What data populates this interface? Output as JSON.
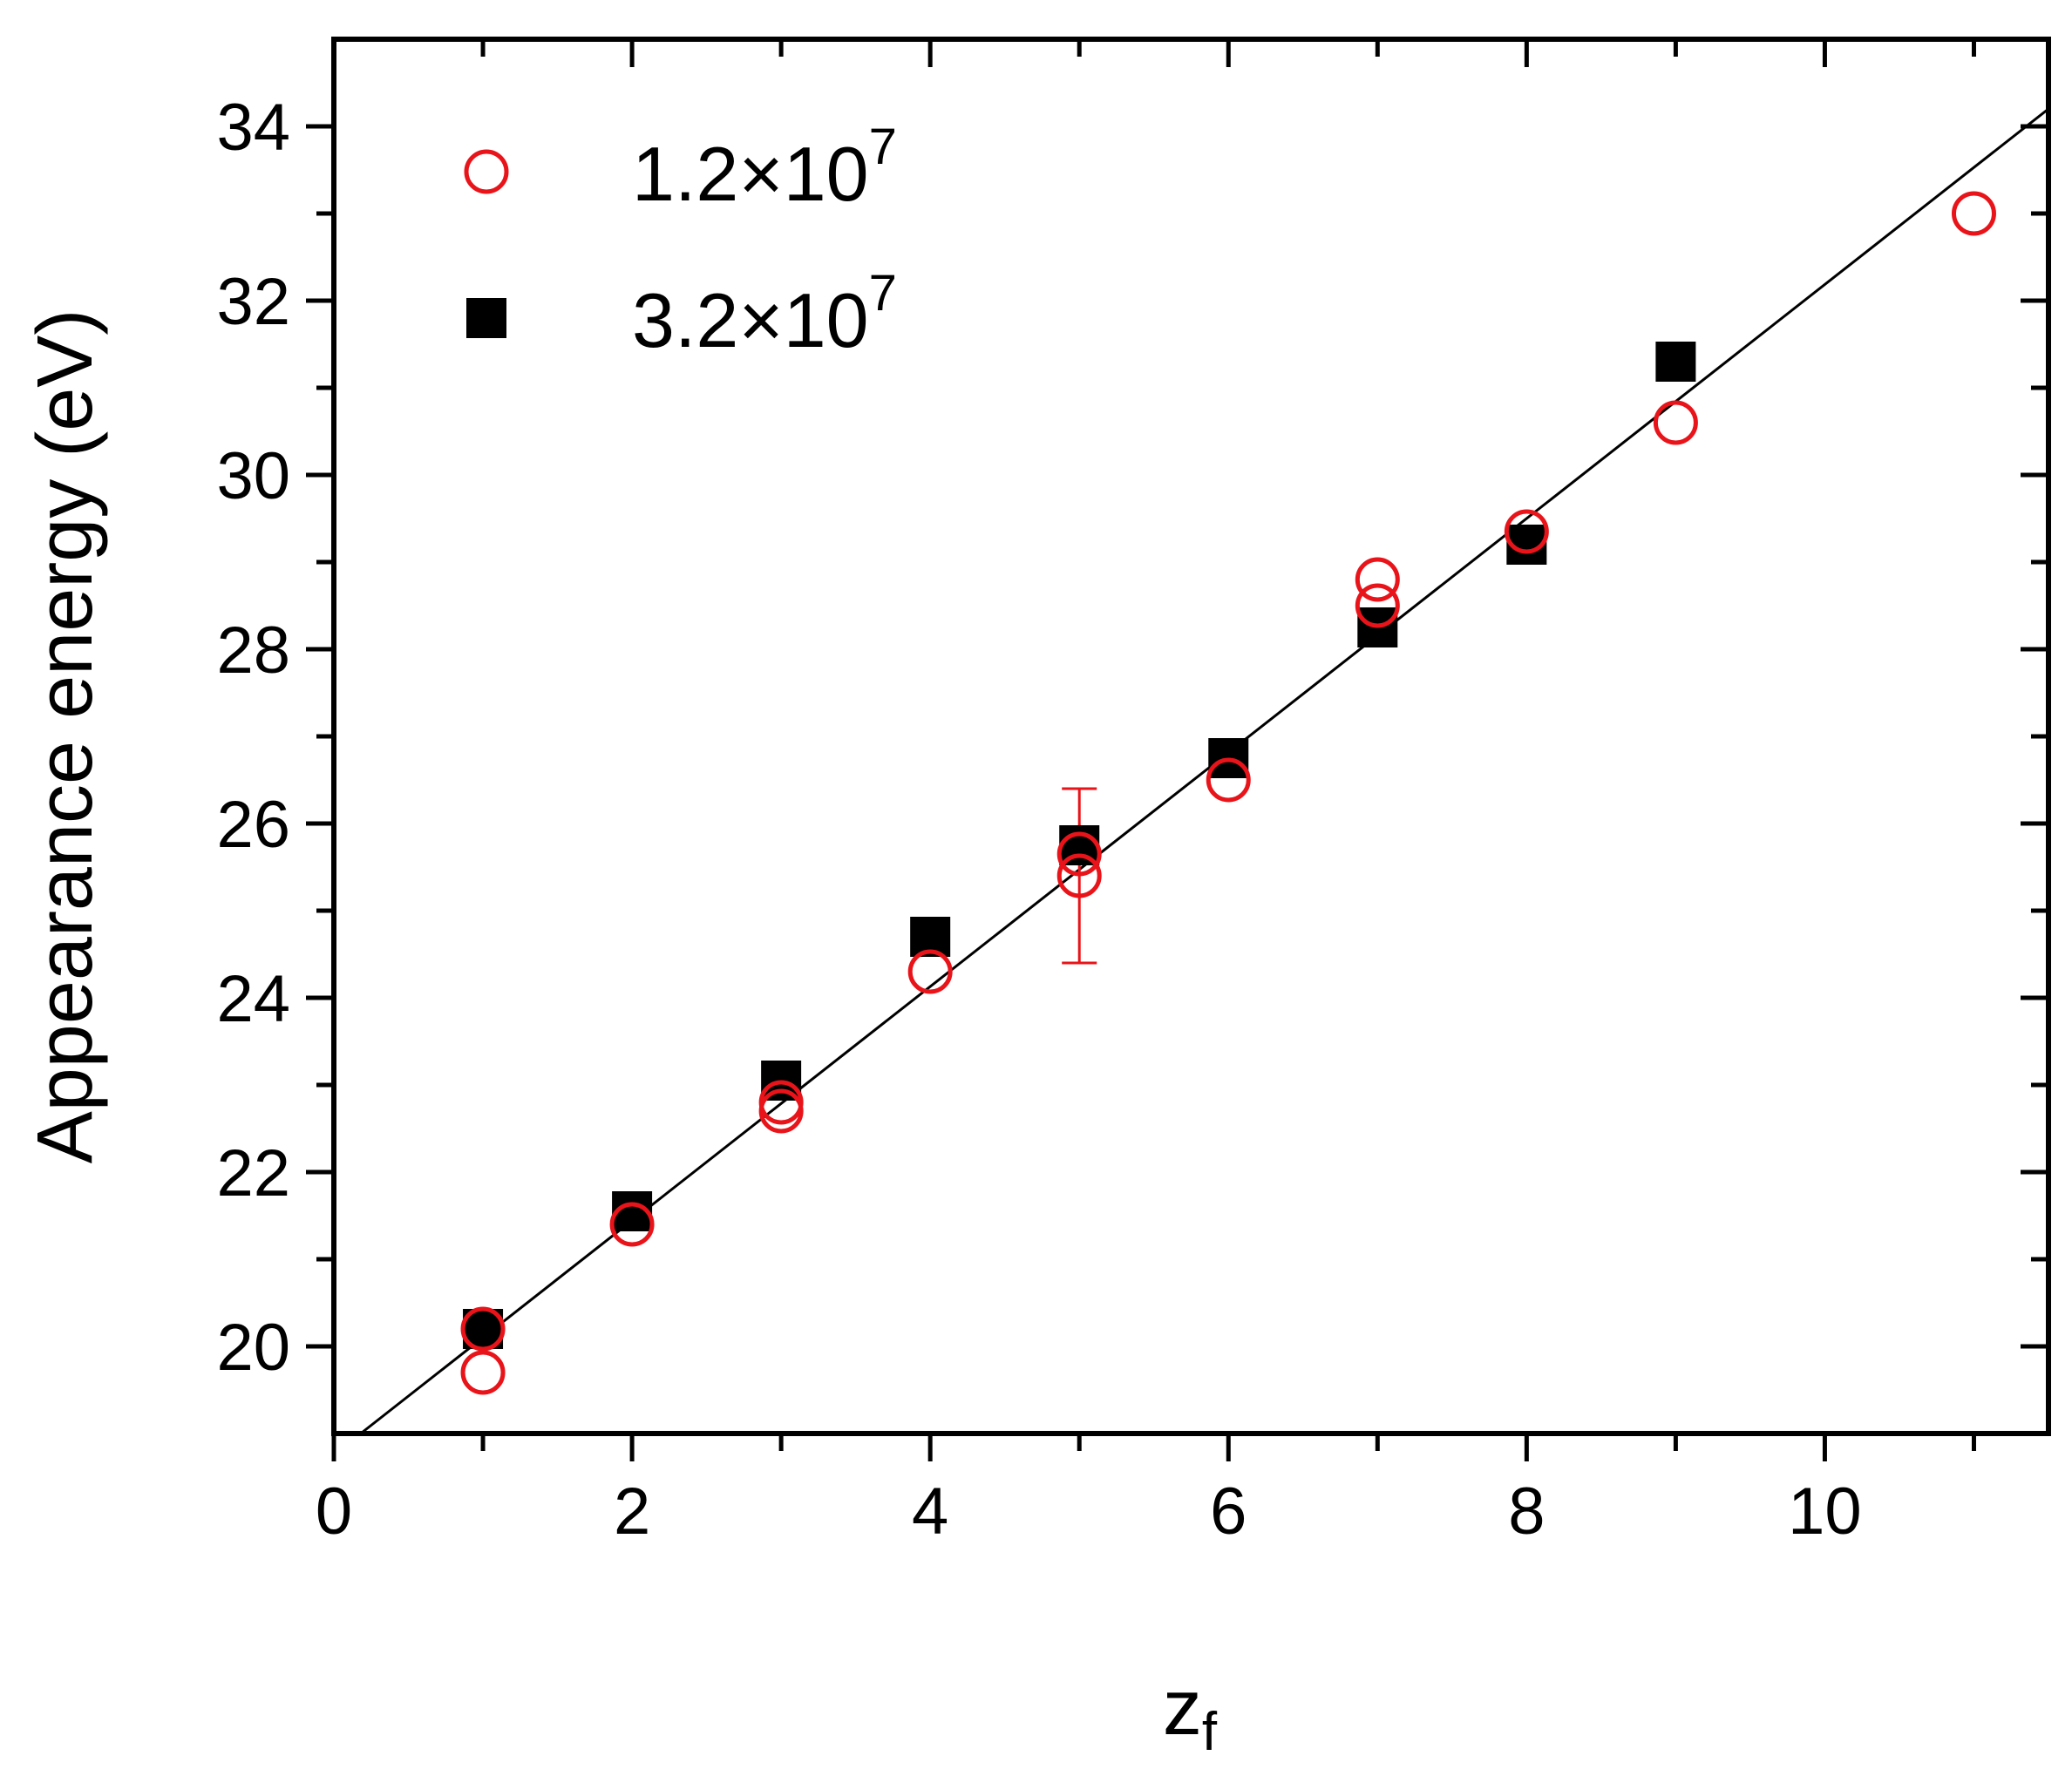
{
  "chart_data": {
    "type": "scatter",
    "xlabel": "z",
    "xlabel_sub": "f",
    "ylabel": "Appearance energy (eV)",
    "xlim": [
      0,
      11.5
    ],
    "ylim": [
      19,
      35
    ],
    "xticks": [
      0,
      2,
      4,
      6,
      8,
      10
    ],
    "yticks": [
      20,
      22,
      24,
      26,
      28,
      30,
      32,
      34
    ],
    "x_minor_step": 1,
    "y_minor_step": 1,
    "legend_position": "top-left",
    "series": [
      {
        "name": "1.2×10",
        "name_sup": "7",
        "marker": "open-circle",
        "color": "#e8141a",
        "points": [
          [
            1,
            20.2
          ],
          [
            1,
            19.7
          ],
          [
            2,
            21.4
          ],
          [
            3,
            22.7
          ],
          [
            3,
            22.8
          ],
          [
            4,
            24.3
          ],
          [
            5,
            25.4
          ],
          [
            5,
            25.65
          ],
          [
            6,
            26.5
          ],
          [
            7,
            28.5
          ],
          [
            7,
            28.8
          ],
          [
            8,
            29.35
          ],
          [
            9,
            30.6
          ],
          [
            11,
            33.0
          ]
        ]
      },
      {
        "name": "3.2×10",
        "name_sup": "7",
        "marker": "filled-square",
        "color": "#000000",
        "points": [
          [
            1,
            20.2
          ],
          [
            2,
            21.55
          ],
          [
            3,
            23.05
          ],
          [
            4,
            24.7
          ],
          [
            5,
            25.75
          ],
          [
            6,
            26.75
          ],
          [
            7,
            28.25
          ],
          [
            8,
            29.2
          ],
          [
            9,
            31.3
          ]
        ]
      }
    ],
    "error_bars": [
      {
        "x": 5,
        "y": 25.4,
        "low": 24.4,
        "high": 26.4,
        "color": "#e8141a"
      }
    ],
    "fit_line": {
      "x": [
        0.18,
        11.5
      ],
      "y": [
        19.0,
        34.2
      ],
      "color": "#000000"
    }
  }
}
